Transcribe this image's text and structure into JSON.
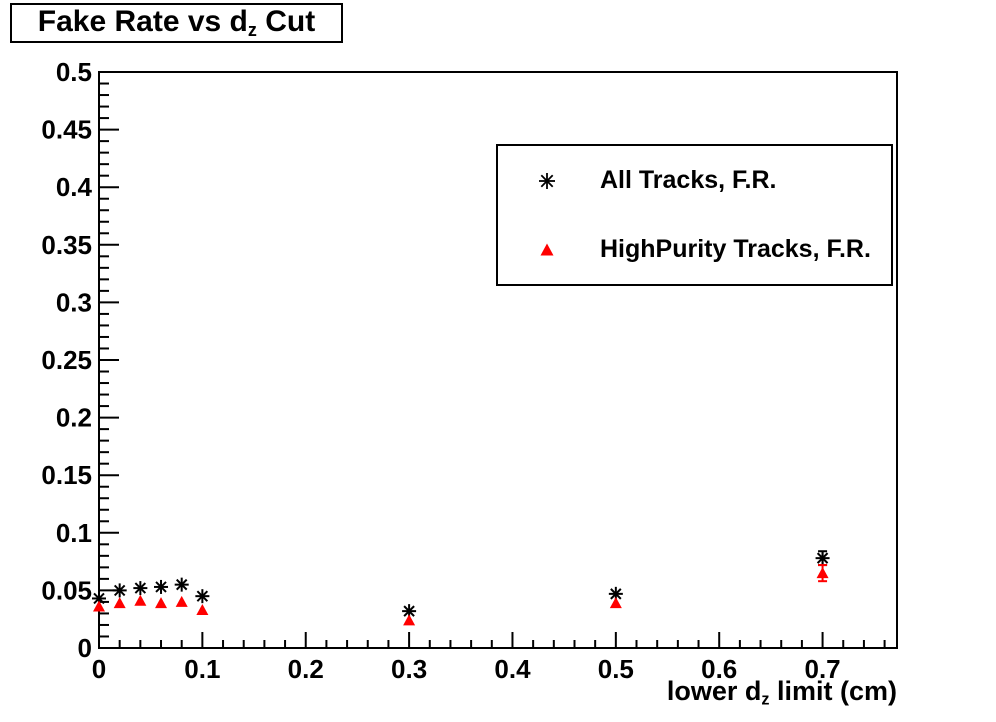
{
  "title": {
    "part1": "Fake Rate vs d",
    "sub": "z",
    "part2": " Cut"
  },
  "x_axis_title": {
    "part1": "lower d",
    "sub": "z",
    "part2": " limit (cm)"
  },
  "colors": {
    "background": "#ffffff",
    "frame": "#000000",
    "all_tracks": "#000000",
    "highpurity_tracks": "#ff0000"
  },
  "chart_data": {
    "type": "scatter",
    "title": "Fake Rate vs d_z Cut",
    "xlabel": "lower d_z limit (cm)",
    "ylabel": "",
    "xlim": [
      0,
      0.772
    ],
    "ylim": [
      0,
      0.5
    ],
    "grid": false,
    "legend_position": "top-right",
    "x_major_ticks": [
      0,
      0.1,
      0.2,
      0.3,
      0.4,
      0.5,
      0.6,
      0.7
    ],
    "x_tick_labels": [
      "0",
      "0.1",
      "0.2",
      "0.3",
      "0.4",
      "0.5",
      "0.6",
      "0.7"
    ],
    "x_minor_step": 0.02,
    "y_major_ticks": [
      0,
      0.05,
      0.1,
      0.15,
      0.2,
      0.25,
      0.3,
      0.35,
      0.4,
      0.45,
      0.5
    ],
    "y_tick_labels": [
      "0",
      "0.05",
      "0.1",
      "0.15",
      "0.2",
      "0.25",
      "0.3",
      "0.35",
      "0.4",
      "0.45",
      "0.5"
    ],
    "y_minor_step": 0.01,
    "series": [
      {
        "name": "All Tracks, F.R.",
        "marker": "asterisk",
        "color": "#000000",
        "x": [
          0.0,
          0.02,
          0.04,
          0.06,
          0.08,
          0.1,
          0.3,
          0.5,
          0.7
        ],
        "y": [
          0.043,
          0.05,
          0.052,
          0.053,
          0.055,
          0.045,
          0.032,
          0.047,
          0.078
        ],
        "yerr": [
          0,
          0,
          0,
          0,
          0,
          0,
          0,
          0,
          0.006
        ]
      },
      {
        "name": "HighPurity Tracks, F.R.",
        "marker": "triangle",
        "color": "#ff0000",
        "x": [
          0.0,
          0.02,
          0.04,
          0.06,
          0.08,
          0.1,
          0.3,
          0.5,
          0.7
        ],
        "y": [
          0.036,
          0.039,
          0.041,
          0.039,
          0.04,
          0.033,
          0.024,
          0.039,
          0.065
        ],
        "yerr": [
          0,
          0,
          0,
          0,
          0,
          0,
          0,
          0,
          0.007
        ]
      }
    ]
  }
}
